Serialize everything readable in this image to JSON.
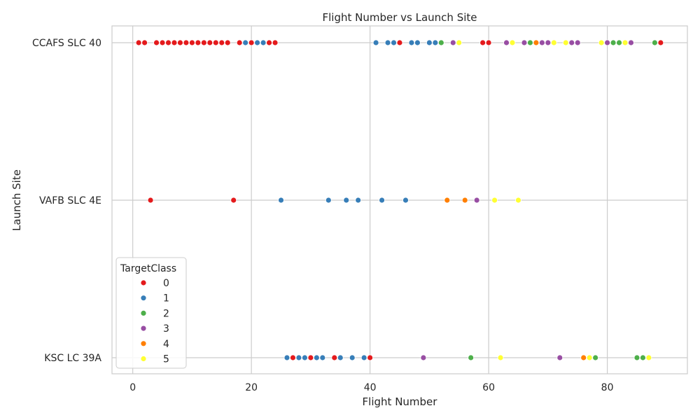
{
  "chart_data": {
    "type": "scatter",
    "title": "Flight Number vs Launch Site",
    "xlabel": "Flight Number",
    "ylabel": "Launch Site",
    "xlim": [
      -3.5,
      93.5
    ],
    "xticks": [
      0,
      20,
      40,
      60,
      80
    ],
    "categories": [
      "CCAFS SLC 40",
      "VAFB SLC 4E",
      "KSC LC 39A"
    ],
    "grid": true,
    "legend": {
      "title": "TargetClass",
      "placement": "lower-left",
      "entries": [
        "0",
        "1",
        "2",
        "3",
        "4",
        "5"
      ]
    },
    "colors": {
      "0": "#e41a1c",
      "1": "#377eb8",
      "2": "#4daf4a",
      "3": "#984ea3",
      "4": "#ff7f00",
      "5": "#ffff33"
    },
    "series": [
      {
        "name": "0",
        "points": [
          [
            1,
            "CCAFS SLC 40"
          ],
          [
            2,
            "CCAFS SLC 40"
          ],
          [
            4,
            "CCAFS SLC 40"
          ],
          [
            5,
            "CCAFS SLC 40"
          ],
          [
            6,
            "CCAFS SLC 40"
          ],
          [
            7,
            "CCAFS SLC 40"
          ],
          [
            8,
            "CCAFS SLC 40"
          ],
          [
            9,
            "CCAFS SLC 40"
          ],
          [
            10,
            "CCAFS SLC 40"
          ],
          [
            11,
            "CCAFS SLC 40"
          ],
          [
            12,
            "CCAFS SLC 40"
          ],
          [
            13,
            "CCAFS SLC 40"
          ],
          [
            14,
            "CCAFS SLC 40"
          ],
          [
            15,
            "CCAFS SLC 40"
          ],
          [
            16,
            "CCAFS SLC 40"
          ],
          [
            18,
            "CCAFS SLC 40"
          ],
          [
            20,
            "CCAFS SLC 40"
          ],
          [
            23,
            "CCAFS SLC 40"
          ],
          [
            24,
            "CCAFS SLC 40"
          ],
          [
            45,
            "CCAFS SLC 40"
          ],
          [
            59,
            "CCAFS SLC 40"
          ],
          [
            60,
            "CCAFS SLC 40"
          ],
          [
            89,
            "CCAFS SLC 40"
          ],
          [
            3,
            "VAFB SLC 4E"
          ],
          [
            17,
            "VAFB SLC 4E"
          ],
          [
            27,
            "KSC LC 39A"
          ],
          [
            30,
            "KSC LC 39A"
          ],
          [
            34,
            "KSC LC 39A"
          ],
          [
            40,
            "KSC LC 39A"
          ]
        ]
      },
      {
        "name": "1",
        "points": [
          [
            19,
            "CCAFS SLC 40"
          ],
          [
            21,
            "CCAFS SLC 40"
          ],
          [
            22,
            "CCAFS SLC 40"
          ],
          [
            41,
            "CCAFS SLC 40"
          ],
          [
            43,
            "CCAFS SLC 40"
          ],
          [
            44,
            "CCAFS SLC 40"
          ],
          [
            47,
            "CCAFS SLC 40"
          ],
          [
            48,
            "CCAFS SLC 40"
          ],
          [
            50,
            "CCAFS SLC 40"
          ],
          [
            51,
            "CCAFS SLC 40"
          ],
          [
            25,
            "VAFB SLC 4E"
          ],
          [
            33,
            "VAFB SLC 4E"
          ],
          [
            36,
            "VAFB SLC 4E"
          ],
          [
            38,
            "VAFB SLC 4E"
          ],
          [
            42,
            "VAFB SLC 4E"
          ],
          [
            46,
            "VAFB SLC 4E"
          ],
          [
            26,
            "KSC LC 39A"
          ],
          [
            28,
            "KSC LC 39A"
          ],
          [
            29,
            "KSC LC 39A"
          ],
          [
            31,
            "KSC LC 39A"
          ],
          [
            32,
            "KSC LC 39A"
          ],
          [
            35,
            "KSC LC 39A"
          ],
          [
            37,
            "KSC LC 39A"
          ],
          [
            39,
            "KSC LC 39A"
          ]
        ]
      },
      {
        "name": "2",
        "points": [
          [
            52,
            "CCAFS SLC 40"
          ],
          [
            67,
            "CCAFS SLC 40"
          ],
          [
            81,
            "CCAFS SLC 40"
          ],
          [
            82,
            "CCAFS SLC 40"
          ],
          [
            88,
            "CCAFS SLC 40"
          ],
          [
            57,
            "KSC LC 39A"
          ],
          [
            78,
            "KSC LC 39A"
          ],
          [
            85,
            "KSC LC 39A"
          ],
          [
            86,
            "KSC LC 39A"
          ]
        ]
      },
      {
        "name": "3",
        "points": [
          [
            54,
            "CCAFS SLC 40"
          ],
          [
            63,
            "CCAFS SLC 40"
          ],
          [
            66,
            "CCAFS SLC 40"
          ],
          [
            69,
            "CCAFS SLC 40"
          ],
          [
            70,
            "CCAFS SLC 40"
          ],
          [
            74,
            "CCAFS SLC 40"
          ],
          [
            75,
            "CCAFS SLC 40"
          ],
          [
            80,
            "CCAFS SLC 40"
          ],
          [
            84,
            "CCAFS SLC 40"
          ],
          [
            58,
            "VAFB SLC 4E"
          ],
          [
            49,
            "KSC LC 39A"
          ],
          [
            72,
            "KSC LC 39A"
          ]
        ]
      },
      {
        "name": "4",
        "points": [
          [
            68,
            "CCAFS SLC 40"
          ],
          [
            53,
            "VAFB SLC 4E"
          ],
          [
            56,
            "VAFB SLC 4E"
          ],
          [
            76,
            "KSC LC 39A"
          ]
        ]
      },
      {
        "name": "5",
        "points": [
          [
            55,
            "CCAFS SLC 40"
          ],
          [
            64,
            "CCAFS SLC 40"
          ],
          [
            71,
            "CCAFS SLC 40"
          ],
          [
            73,
            "CCAFS SLC 40"
          ],
          [
            79,
            "CCAFS SLC 40"
          ],
          [
            83,
            "CCAFS SLC 40"
          ],
          [
            61,
            "VAFB SLC 4E"
          ],
          [
            65,
            "VAFB SLC 4E"
          ],
          [
            62,
            "KSC LC 39A"
          ],
          [
            77,
            "KSC LC 39A"
          ],
          [
            87,
            "KSC LC 39A"
          ]
        ]
      }
    ]
  }
}
